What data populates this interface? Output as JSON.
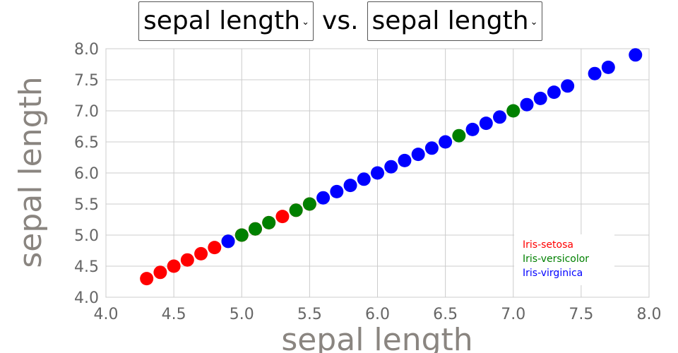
{
  "controls": {
    "x_select": "sepal length",
    "separator": "vs.",
    "y_select": "sepal length"
  },
  "colors": {
    "Iris-setosa": "#ff0000",
    "Iris-versicolor": "#008000",
    "Iris-virginica": "#0000ff"
  },
  "chart_data": {
    "type": "scatter",
    "xlabel": "sepal length",
    "ylabel": "sepal length",
    "xlim": [
      4.0,
      8.0
    ],
    "ylim": [
      4.0,
      8.0
    ],
    "xticks": [
      "4.0",
      "4.5",
      "5.0",
      "5.5",
      "6.0",
      "6.5",
      "7.0",
      "7.5",
      "8.0"
    ],
    "yticks": [
      "4.0",
      "4.5",
      "5.0",
      "5.5",
      "6.0",
      "6.5",
      "7.0",
      "7.5",
      "8.0"
    ],
    "grid": true,
    "legend_position": "bottom-right",
    "series": [
      {
        "name": "Iris-setosa",
        "color": "#ff0000",
        "x": [
          4.3,
          4.4,
          4.5,
          4.6,
          4.7,
          4.8,
          5.0,
          5.1,
          5.2,
          5.3,
          5.4,
          5.5
        ],
        "y": [
          4.3,
          4.4,
          4.5,
          4.6,
          4.7,
          4.8,
          5.0,
          5.1,
          5.2,
          5.3,
          5.4,
          5.5
        ]
      },
      {
        "name": "Iris-versicolor",
        "color": "#008000",
        "x": [
          4.9,
          5.0,
          5.1,
          5.2,
          5.4,
          5.5,
          6.6,
          7.0
        ],
        "y": [
          4.9,
          5.0,
          5.1,
          5.2,
          5.4,
          5.5,
          6.6,
          7.0
        ]
      },
      {
        "name": "Iris-virginica",
        "color": "#0000ff",
        "x": [
          4.9,
          5.6,
          5.7,
          5.8,
          5.9,
          6.0,
          6.1,
          6.2,
          6.3,
          6.4,
          6.5,
          6.7,
          6.8,
          6.9,
          7.1,
          7.2,
          7.3,
          7.4,
          7.6,
          7.7,
          7.9
        ],
        "y": [
          4.9,
          5.6,
          5.7,
          5.8,
          5.9,
          6.0,
          6.1,
          6.2,
          6.3,
          6.4,
          6.5,
          6.7,
          6.8,
          6.9,
          7.1,
          7.2,
          7.3,
          7.4,
          7.6,
          7.7,
          7.9
        ]
      }
    ]
  }
}
